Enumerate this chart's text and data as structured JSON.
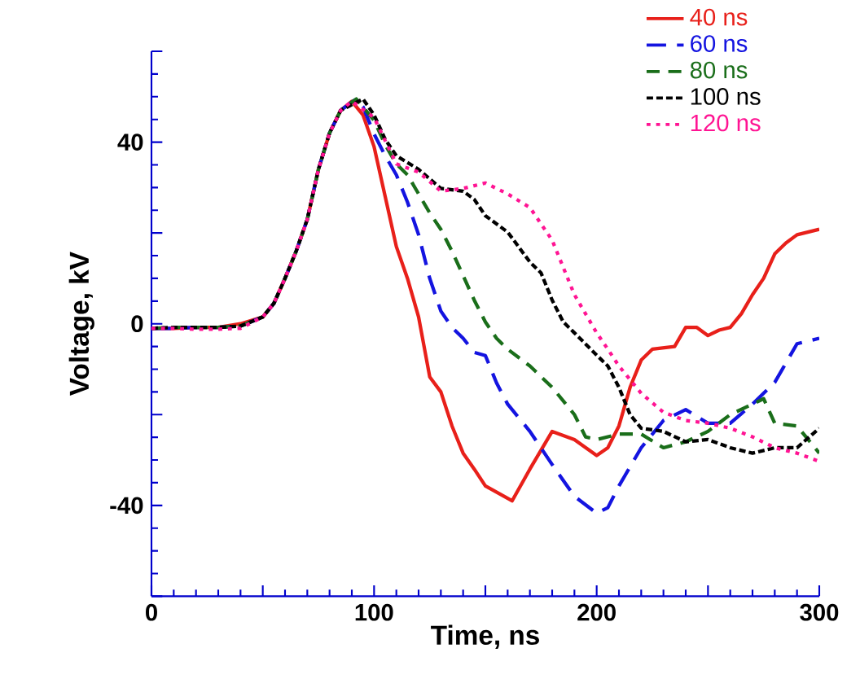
{
  "chart_data": {
    "type": "line",
    "xlabel": "Time, ns",
    "ylabel": "Voltage, kV",
    "xlim": [
      0,
      300
    ],
    "ylim": [
      -60,
      60
    ],
    "xticks": [
      0,
      {
        "value": 50,
        "label": null
      },
      100,
      {
        "value": 150,
        "label": null
      },
      200,
      {
        "value": 250,
        "label": null
      },
      300
    ],
    "yticks": [
      {
        "value": -60,
        "label": null
      },
      -40,
      {
        "value": -20,
        "label": null
      },
      0,
      {
        "value": 20,
        "label": null
      },
      40,
      {
        "value": 60,
        "label": null
      }
    ],
    "grid": false,
    "legend": "top right",
    "marker": "none",
    "series": [
      {
        "name": "40 ns",
        "color": "#e8201a",
        "line_style": "solid",
        "x": [
          0,
          10,
          20,
          30,
          40,
          50,
          55,
          60,
          65,
          70,
          75,
          80,
          85,
          90,
          95,
          100,
          105,
          110,
          115,
          120,
          125,
          130,
          135,
          140,
          145,
          150,
          162,
          170,
          180,
          190,
          200,
          205,
          210,
          215,
          220,
          225,
          235,
          240,
          245,
          250,
          255,
          260,
          265,
          270,
          275,
          280,
          285,
          290,
          300
        ],
        "values": [
          -1,
          -1,
          -0.8,
          -0.8,
          0,
          1.5,
          4.5,
          10,
          16,
          23,
          34,
          42,
          47,
          49,
          46,
          39,
          28,
          17,
          10,
          1.5,
          -11.7,
          -15,
          -22.5,
          -28.5,
          -32,
          -35.7,
          -39,
          -32,
          -23.7,
          -25.5,
          -29,
          -27.3,
          -22.5,
          -14,
          -8,
          -5.6,
          -5,
          -0.8,
          -0.8,
          -2.6,
          -1.4,
          -0.8,
          2.2,
          6.4,
          10,
          15.4,
          17.8,
          19.6,
          20.8
        ]
      },
      {
        "name": "60 ns",
        "color": "#1414e0",
        "line_style": "dashed",
        "x": [
          0,
          10,
          20,
          30,
          40,
          50,
          55,
          60,
          65,
          70,
          75,
          80,
          85,
          92,
          95,
          100,
          105,
          110,
          115,
          120,
          125,
          130,
          135,
          140,
          145,
          150,
          155,
          160,
          170,
          180,
          190,
          200,
          205,
          210,
          220,
          230,
          240,
          250,
          260,
          270,
          280,
          290,
          300
        ],
        "values": [
          -1,
          -1,
          -0.8,
          -0.8,
          -0.5,
          1.5,
          4.5,
          10,
          16,
          23,
          34,
          42,
          47,
          49.5,
          47.8,
          41.8,
          37,
          32.8,
          26.8,
          19.6,
          10,
          2.8,
          -0.8,
          -3.2,
          -6.3,
          -7,
          -13,
          -17.7,
          -23.7,
          -31,
          -38,
          -41.7,
          -40.5,
          -35.7,
          -27.3,
          -21.3,
          -18.9,
          -21.9,
          -21.9,
          -17.7,
          -12.9,
          -4.4,
          -3.2
        ]
      },
      {
        "name": "80 ns",
        "color": "#1a6e1a",
        "line_style": "dashed",
        "x": [
          0,
          10,
          20,
          30,
          40,
          50,
          55,
          60,
          65,
          70,
          75,
          80,
          85,
          92,
          100,
          105,
          110,
          115,
          120,
          125,
          130,
          135,
          140,
          145,
          150,
          155,
          160,
          170,
          180,
          190,
          195,
          200,
          210,
          220,
          230,
          240,
          250,
          260,
          270,
          275,
          280,
          290,
          300
        ],
        "values": [
          -1,
          -0.8,
          -0.8,
          -0.8,
          -0.5,
          1.5,
          4.5,
          10,
          16,
          23,
          34,
          42,
          47,
          49.5,
          44.8,
          39.4,
          35.2,
          32.8,
          28.6,
          24.4,
          20.8,
          16,
          10.6,
          5.2,
          0.4,
          -3.2,
          -5.6,
          -9.3,
          -14,
          -20,
          -24.9,
          -25.5,
          -24.3,
          -24.3,
          -27.3,
          -26,
          -23.7,
          -20,
          -17.7,
          -16.5,
          -21.9,
          -22.5,
          -28.5
        ]
      },
      {
        "name": "100 ns",
        "color": "#000000",
        "line_style": "dashed",
        "x": [
          0,
          10,
          20,
          30,
          40,
          50,
          55,
          60,
          65,
          70,
          75,
          80,
          85,
          95,
          100,
          105,
          110,
          120,
          130,
          140,
          145,
          150,
          160,
          170,
          175,
          180,
          185,
          190,
          200,
          205,
          210,
          215,
          220,
          230,
          240,
          250,
          260,
          270,
          280,
          290,
          300
        ],
        "values": [
          -1,
          -0.8,
          -0.8,
          -0.8,
          -0.5,
          1.5,
          4.5,
          10,
          16,
          23,
          34,
          42,
          47,
          49.5,
          46,
          40.6,
          37,
          34,
          29.8,
          29.2,
          27.4,
          23.8,
          20.2,
          13.6,
          11.2,
          5.2,
          0.4,
          -2,
          -6.9,
          -9.3,
          -14,
          -20,
          -23,
          -23.7,
          -26,
          -25.5,
          -27.3,
          -28.5,
          -27.3,
          -27.3,
          -23
        ]
      },
      {
        "name": "120 ns",
        "color": "#ff1493",
        "line_style": "dotted",
        "x": [
          0,
          10,
          20,
          30,
          40,
          50,
          55,
          60,
          65,
          70,
          75,
          80,
          85,
          90,
          100,
          110,
          120,
          130,
          140,
          150,
          160,
          170,
          180,
          190,
          200,
          205,
          210,
          220,
          230,
          240,
          250,
          260,
          270,
          280,
          290,
          300
        ],
        "values": [
          -1,
          -1,
          -1.2,
          -1.2,
          -1,
          1.5,
          4.5,
          10,
          16,
          23,
          34,
          42,
          47,
          49,
          45.4,
          35.2,
          33.4,
          29.2,
          29.8,
          31,
          28.6,
          25.6,
          18.4,
          6.4,
          -2,
          -5.6,
          -9.3,
          -15.3,
          -19.5,
          -21.3,
          -21.9,
          -23,
          -24.9,
          -27.3,
          -28.5,
          -30.3
        ]
      }
    ]
  }
}
